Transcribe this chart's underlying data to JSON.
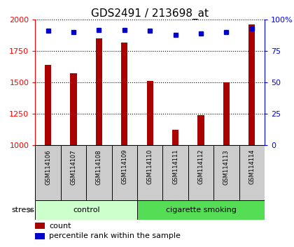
{
  "title": "GDS2491 / 213698_at",
  "samples": [
    "GSM114106",
    "GSM114107",
    "GSM114108",
    "GSM114109",
    "GSM114110",
    "GSM114111",
    "GSM114112",
    "GSM114113",
    "GSM114114"
  ],
  "counts": [
    1640,
    1570,
    1850,
    1820,
    1510,
    1120,
    1240,
    1500,
    1960
  ],
  "percentiles": [
    91,
    90,
    92,
    92,
    91,
    88,
    89,
    90,
    93
  ],
  "ylim_left": [
    1000,
    2000
  ],
  "ylim_right": [
    0,
    100
  ],
  "yticks_left": [
    1000,
    1250,
    1500,
    1750,
    2000
  ],
  "yticks_right": [
    0,
    25,
    50,
    75,
    100
  ],
  "bar_color": "#aa0000",
  "dot_color": "#0000cc",
  "n_control": 4,
  "n_smoking": 5,
  "control_label": "control",
  "smoking_label": "cigarette smoking",
  "stress_label": "stress",
  "legend_count": "count",
  "legend_percentile": "percentile rank within the sample",
  "control_color": "#ccffcc",
  "smoking_color": "#55dd55",
  "sample_box_color": "#cccccc",
  "title_fontsize": 11,
  "tick_fontsize": 8,
  "label_fontsize": 8,
  "sample_fontsize": 6
}
